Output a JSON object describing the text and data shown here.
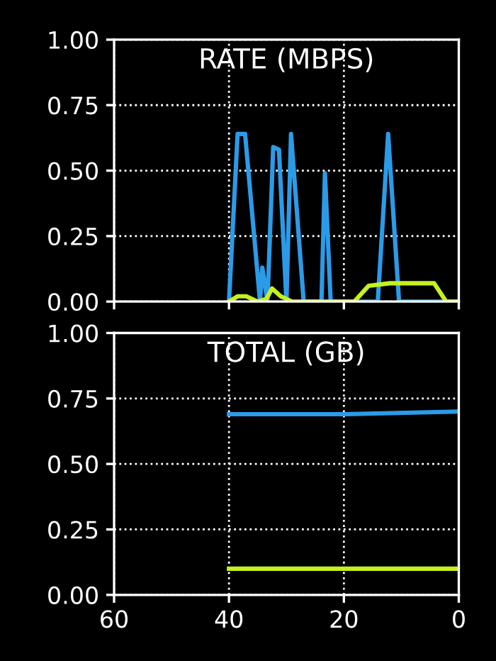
{
  "chart_data": [
    {
      "type": "line",
      "title": "RATE (MBPS)",
      "xlim": [
        60,
        0
      ],
      "xticks": [
        60,
        40,
        20,
        0
      ],
      "ylim": [
        0,
        1
      ],
      "yticks": [
        {
          "value": 0,
          "label": "0.00"
        },
        {
          "value": 0.25,
          "label": "0.25"
        },
        {
          "value": 0.5,
          "label": "0.50"
        },
        {
          "value": 0.75,
          "label": "0.75"
        },
        {
          "value": 1,
          "label": "1.00"
        }
      ],
      "grid": true,
      "tick_labels": "y",
      "series": [
        {
          "color": "#2b9be8",
          "x": [
            40,
            38.5,
            37.2,
            34.6,
            34.2,
            33.3,
            32.3,
            31.3,
            30.0,
            29.2,
            27.0,
            23.9,
            23.3,
            22.3,
            14.1,
            12.3,
            10.4,
            0.2
          ],
          "values": [
            0,
            0.64,
            0.64,
            0,
            0.13,
            0,
            0.59,
            0.58,
            0,
            0.64,
            0,
            0,
            0.49,
            0,
            0,
            0.64,
            0,
            0
          ]
        },
        {
          "color": "#c6f01e",
          "x": [
            40,
            38.5,
            37,
            35,
            33.5,
            32.5,
            31,
            29,
            27,
            24,
            22,
            18.2,
            15.7,
            12,
            8,
            4.3,
            2.2,
            0.2
          ],
          "values": [
            0,
            0.02,
            0.02,
            0,
            0.01,
            0.05,
            0.02,
            0,
            0,
            0,
            0,
            0,
            0.06,
            0.07,
            0.07,
            0.07,
            0,
            0
          ]
        }
      ]
    },
    {
      "type": "line",
      "title": "TOTAL (GB)",
      "xlim": [
        60,
        0
      ],
      "xticks": [
        60,
        40,
        20,
        0
      ],
      "ylim": [
        0,
        1
      ],
      "yticks": [
        {
          "value": 0,
          "label": "0.00"
        },
        {
          "value": 0.25,
          "label": "0.25"
        },
        {
          "value": 0.5,
          "label": "0.50"
        },
        {
          "value": 0.75,
          "label": "0.75"
        },
        {
          "value": 1,
          "label": "1.00"
        }
      ],
      "grid": true,
      "series": [
        {
          "color": "#2b9be8",
          "x": [
            40,
            20,
            0
          ],
          "values": [
            0.69,
            0.69,
            0.7
          ]
        },
        {
          "color": "#c6f01e",
          "x": [
            40,
            20,
            0
          ],
          "values": [
            0.1,
            0.1,
            0.1
          ]
        }
      ]
    }
  ]
}
